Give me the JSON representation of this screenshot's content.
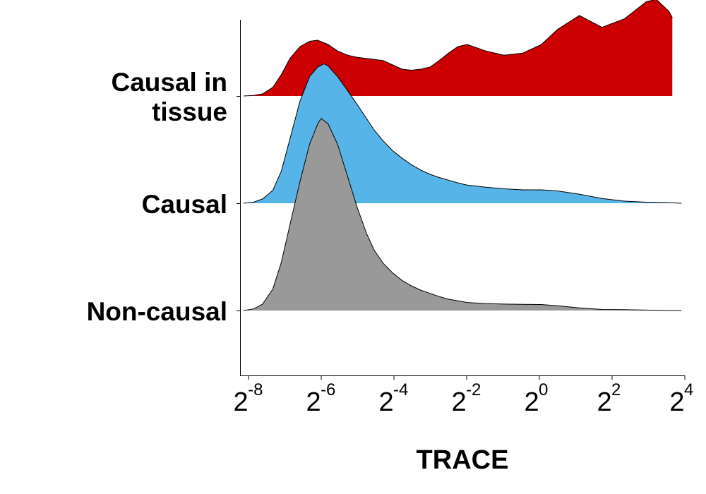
{
  "chart_data": {
    "type": "ridgeline",
    "xlabel": "TRACE",
    "x_scale": "log2",
    "x_ticks": [
      {
        "value": 0.00390625,
        "base": "2",
        "exponent": "-8"
      },
      {
        "value": 0.015625,
        "base": "2",
        "exponent": "-6"
      },
      {
        "value": 0.0625,
        "base": "2",
        "exponent": "-4"
      },
      {
        "value": 0.25,
        "base": "2",
        "exponent": "-2"
      },
      {
        "value": 1,
        "base": "2",
        "exponent": "0"
      },
      {
        "value": 4,
        "base": "2",
        "exponent": "2"
      },
      {
        "value": 16,
        "base": "2",
        "exponent": "4"
      }
    ],
    "xlim": [
      0.00332,
      16
    ],
    "series": [
      {
        "name": "Non-causal",
        "label_lines": [
          "Non-causal"
        ],
        "color": "#999999",
        "peak_height_units": 1.79,
        "density": [
          [
            0.00355,
            0.0
          ],
          [
            0.0043,
            0.015
          ],
          [
            0.0051,
            0.06
          ],
          [
            0.0062,
            0.2
          ],
          [
            0.0073,
            0.45
          ],
          [
            0.0086,
            0.8
          ],
          [
            0.0104,
            1.2
          ],
          [
            0.0125,
            1.55
          ],
          [
            0.0146,
            1.74
          ],
          [
            0.0156,
            1.79
          ],
          [
            0.0178,
            1.74
          ],
          [
            0.0213,
            1.55
          ],
          [
            0.0258,
            1.25
          ],
          [
            0.031,
            0.96
          ],
          [
            0.037,
            0.72
          ],
          [
            0.043,
            0.56
          ],
          [
            0.051,
            0.44
          ],
          [
            0.061,
            0.35
          ],
          [
            0.073,
            0.28
          ],
          [
            0.087,
            0.23
          ],
          [
            0.104,
            0.19
          ],
          [
            0.124,
            0.16
          ],
          [
            0.148,
            0.13
          ],
          [
            0.177,
            0.105
          ],
          [
            0.211,
            0.09
          ],
          [
            0.252,
            0.075
          ],
          [
            0.36,
            0.065
          ],
          [
            0.51,
            0.06
          ],
          [
            0.73,
            0.057
          ],
          [
            1.04,
            0.056
          ],
          [
            1.41,
            0.045
          ],
          [
            2.14,
            0.025
          ],
          [
            3.3,
            0.01
          ],
          [
            5.06,
            0.008
          ],
          [
            7.7,
            0.004
          ],
          [
            11.8,
            0.0
          ],
          [
            15.0,
            0.0
          ]
        ]
      },
      {
        "name": "Causal",
        "label_lines": [
          "Causal"
        ],
        "color": "#56B4E9",
        "peak_height_units": 1.3,
        "density": [
          [
            0.00355,
            0.0
          ],
          [
            0.0043,
            0.01
          ],
          [
            0.0051,
            0.04
          ],
          [
            0.0062,
            0.12
          ],
          [
            0.0073,
            0.3
          ],
          [
            0.0086,
            0.6
          ],
          [
            0.0104,
            0.95
          ],
          [
            0.0125,
            1.18
          ],
          [
            0.0146,
            1.27
          ],
          [
            0.0164,
            1.3
          ],
          [
            0.0178,
            1.28
          ],
          [
            0.0213,
            1.18
          ],
          [
            0.0258,
            1.05
          ],
          [
            0.031,
            0.92
          ],
          [
            0.037,
            0.79
          ],
          [
            0.043,
            0.68
          ],
          [
            0.051,
            0.58
          ],
          [
            0.061,
            0.49
          ],
          [
            0.073,
            0.42
          ],
          [
            0.087,
            0.36
          ],
          [
            0.104,
            0.31
          ],
          [
            0.124,
            0.27
          ],
          [
            0.148,
            0.24
          ],
          [
            0.177,
            0.215
          ],
          [
            0.211,
            0.19
          ],
          [
            0.252,
            0.17
          ],
          [
            0.36,
            0.15
          ],
          [
            0.51,
            0.135
          ],
          [
            0.73,
            0.125
          ],
          [
            1.04,
            0.125
          ],
          [
            1.41,
            0.115
          ],
          [
            2.14,
            0.085
          ],
          [
            3.3,
            0.045
          ],
          [
            5.06,
            0.02
          ],
          [
            7.7,
            0.01
          ],
          [
            11.8,
            0.005
          ],
          [
            15.0,
            0.0
          ]
        ]
      },
      {
        "name": "Causal in tissue",
        "label_lines": [
          "Causal in",
          "tissue"
        ],
        "color": "#CC0000",
        "peak_height_units": 0.9,
        "density": [
          [
            0.00355,
            0.0
          ],
          [
            0.0043,
            0.005
          ],
          [
            0.0051,
            0.02
          ],
          [
            0.0062,
            0.08
          ],
          [
            0.0073,
            0.2
          ],
          [
            0.0086,
            0.35
          ],
          [
            0.0104,
            0.46
          ],
          [
            0.0125,
            0.51
          ],
          [
            0.0146,
            0.52
          ],
          [
            0.0178,
            0.48
          ],
          [
            0.0213,
            0.42
          ],
          [
            0.0258,
            0.38
          ],
          [
            0.031,
            0.36
          ],
          [
            0.037,
            0.35
          ],
          [
            0.043,
            0.34
          ],
          [
            0.051,
            0.33
          ],
          [
            0.061,
            0.29
          ],
          [
            0.073,
            0.25
          ],
          [
            0.087,
            0.24
          ],
          [
            0.104,
            0.25
          ],
          [
            0.124,
            0.27
          ],
          [
            0.148,
            0.33
          ],
          [
            0.177,
            0.4
          ],
          [
            0.211,
            0.46
          ],
          [
            0.252,
            0.48
          ],
          [
            0.36,
            0.42
          ],
          [
            0.51,
            0.38
          ],
          [
            0.73,
            0.4
          ],
          [
            1.04,
            0.48
          ],
          [
            1.41,
            0.62
          ],
          [
            2.14,
            0.75
          ],
          [
            3.3,
            0.64
          ],
          [
            5.06,
            0.72
          ],
          [
            7.7,
            0.88
          ],
          [
            9.3,
            0.9
          ],
          [
            11.8,
            0.79
          ],
          [
            12.6,
            0.73
          ]
        ]
      }
    ],
    "grid": false,
    "legend": "none"
  }
}
